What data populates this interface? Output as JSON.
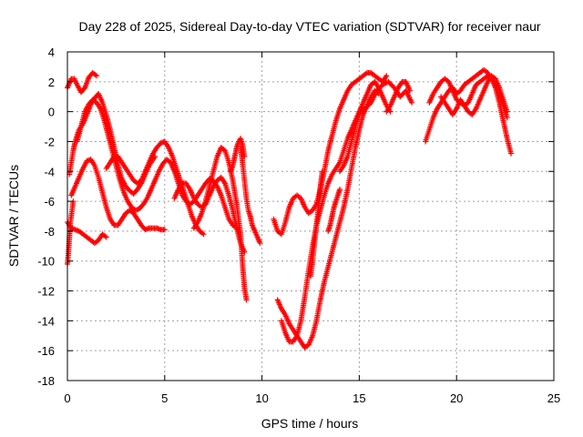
{
  "chart_data": {
    "type": "scatter",
    "title": "Day 228 of 2025, Sidereal Day-to-day VTEC variation (SDTVAR) for receiver naur",
    "xlabel": "GPS time / hours",
    "ylabel": "SDTVAR / TECUs",
    "xlim": [
      0,
      25
    ],
    "ylim": [
      -18,
      4
    ],
    "xticks": [
      "0",
      "5",
      "10",
      "15",
      "20",
      "25"
    ],
    "yticks": [
      "4",
      "2",
      "0",
      "-2",
      "-4",
      "-6",
      "-8",
      "-10",
      "-12",
      "-14",
      "-16",
      "-18"
    ],
    "grid": true,
    "marker": "+",
    "color": "#ff0000",
    "tracks": [
      {
        "x": [
          0.0,
          0.05,
          0.1,
          0.15,
          0.3
        ],
        "y": [
          -10.2,
          -9.5,
          -8.5,
          -7.5,
          -6.0
        ]
      },
      {
        "x": [
          0.0,
          0.2,
          0.35,
          0.5,
          0.7,
          0.9,
          1.1,
          1.3,
          1.5
        ],
        "y": [
          1.6,
          2.2,
          2.2,
          1.8,
          1.3,
          1.6,
          2.3,
          2.6,
          2.4
        ]
      },
      {
        "x": [
          0.1,
          0.2,
          0.3,
          0.4,
          0.5,
          0.6,
          0.8,
          1.0,
          1.2,
          1.4,
          1.6,
          1.8,
          2.0,
          2.2,
          2.4,
          2.6,
          2.8,
          3.0,
          3.2,
          3.4,
          3.6,
          3.8,
          4.0,
          4.2,
          4.5
        ],
        "y": [
          -4.2,
          -3.4,
          -2.6,
          -2.0,
          -1.6,
          -1.2,
          -0.8,
          -0.2,
          0.5,
          0.9,
          1.2,
          0.6,
          -0.2,
          -1.2,
          -2.4,
          -3.6,
          -4.5,
          -5.0,
          -5.3,
          -5.5,
          -5.2,
          -4.8,
          -4.2,
          -3.6,
          -3.0
        ]
      },
      {
        "x": [
          0.5,
          0.7,
          0.9,
          1.1,
          1.3,
          1.5,
          1.7,
          1.9,
          2.1,
          2.3,
          2.5,
          2.7,
          2.9,
          3.1,
          3.3,
          3.5,
          3.7,
          3.9,
          4.1,
          4.3,
          4.5,
          4.7,
          4.9,
          5.1,
          5.3,
          5.5,
          5.7,
          5.9,
          6.1,
          6.3,
          6.5,
          6.7,
          6.9,
          7.1,
          7.3,
          7.5,
          7.7,
          7.9,
          8.1,
          8.3,
          8.5,
          8.7
        ],
        "y": [
          -2.0,
          -1.0,
          0.0,
          0.5,
          0.8,
          0.6,
          0.2,
          -0.6,
          -1.6,
          -2.6,
          -3.6,
          -4.6,
          -5.4,
          -6.0,
          -6.4,
          -6.6,
          -6.5,
          -6.2,
          -5.8,
          -5.2,
          -4.6,
          -4.0,
          -3.5,
          -3.2,
          -3.4,
          -4.0,
          -4.8,
          -5.6,
          -6.0,
          -6.2,
          -6.0,
          -5.6,
          -5.2,
          -4.8,
          -4.5,
          -4.6,
          -5.0,
          -5.6,
          -6.4,
          -7.2,
          -7.6,
          -7.8
        ]
      },
      {
        "x": [
          0.2,
          0.4,
          0.6,
          0.8,
          1.0,
          1.2,
          1.4,
          1.6,
          1.8,
          2.0,
          2.2,
          2.4,
          2.6,
          2.8,
          3.0,
          3.2,
          3.4,
          3.6,
          3.8,
          4.0,
          4.2,
          4.4,
          4.6,
          4.8,
          5.0
        ],
        "y": [
          -5.6,
          -5.0,
          -4.4,
          -3.8,
          -3.3,
          -3.2,
          -3.6,
          -4.4,
          -5.4,
          -6.4,
          -7.2,
          -7.6,
          -7.6,
          -7.2,
          -6.8,
          -6.6,
          -6.8,
          -7.2,
          -7.6,
          -7.9,
          -7.8,
          -7.8,
          -7.8,
          -7.9,
          -7.9
        ]
      },
      {
        "x": [
          0.0,
          0.2,
          0.4,
          0.6,
          0.8,
          1.0,
          1.2,
          1.4,
          1.6,
          1.8,
          2.0
        ],
        "y": [
          -7.4,
          -7.8,
          -7.9,
          -8.0,
          -8.2,
          -8.4,
          -8.6,
          -8.8,
          -8.6,
          -8.2,
          -8.4
        ]
      },
      {
        "x": [
          2.0,
          2.2,
          2.4,
          2.6,
          2.8,
          3.0,
          3.2,
          3.4,
          3.6,
          3.8,
          4.0,
          4.2,
          4.4,
          4.6,
          4.8,
          5.0,
          5.2,
          5.4,
          5.6,
          5.8,
          6.0,
          6.2,
          6.4,
          6.6,
          6.8,
          7.0
        ],
        "y": [
          -3.8,
          -3.4,
          -3.0,
          -3.0,
          -3.4,
          -3.8,
          -4.2,
          -4.6,
          -4.8,
          -4.6,
          -4.0,
          -3.4,
          -2.8,
          -2.4,
          -2.1,
          -2.0,
          -2.4,
          -3.0,
          -3.8,
          -4.6,
          -5.4,
          -6.2,
          -7.0,
          -7.6,
          -8.0,
          -8.2
        ]
      },
      {
        "x": [
          5.5,
          5.7,
          5.9,
          6.1,
          6.3,
          6.5,
          6.7,
          6.9,
          7.1,
          7.3,
          7.5,
          7.7,
          7.9,
          8.1,
          8.3,
          8.5,
          8.7,
          8.9,
          9.1
        ],
        "y": [
          -5.8,
          -5.2,
          -4.8,
          -4.8,
          -5.2,
          -5.8,
          -6.2,
          -6.4,
          -6.2,
          -5.6,
          -5.0,
          -4.6,
          -4.4,
          -4.8,
          -5.6,
          -6.6,
          -7.8,
          -8.8,
          -9.4
        ]
      },
      {
        "x": [
          6.5,
          6.7,
          6.9,
          7.1,
          7.3,
          7.5,
          7.7,
          7.9,
          8.1,
          8.3,
          8.5,
          8.7,
          8.9,
          9.0,
          9.1,
          9.2
        ],
        "y": [
          -7.8,
          -7.4,
          -6.8,
          -6.0,
          -5.0,
          -4.0,
          -3.0,
          -2.4,
          -2.6,
          -3.4,
          -4.6,
          -6.2,
          -8.2,
          -10.2,
          -11.8,
          -12.6
        ]
      },
      {
        "x": [
          8.4,
          8.5,
          8.6,
          8.7,
          8.8,
          8.9,
          9.0,
          9.1
        ],
        "y": [
          -4.0,
          -3.6,
          -3.0,
          -2.4,
          -2.0,
          -1.8,
          -2.2,
          -3.0
        ]
      },
      {
        "x": [
          8.9,
          9.0,
          9.1,
          9.2,
          9.3,
          9.4,
          9.5,
          9.7,
          9.9
        ],
        "y": [
          -2.4,
          -3.4,
          -4.6,
          -5.8,
          -6.6,
          -7.0,
          -7.6,
          -8.2,
          -8.8
        ]
      },
      {
        "x": [
          10.6,
          10.8,
          11.0,
          11.2,
          11.4,
          11.6,
          11.8,
          12.0,
          12.2,
          12.4,
          12.6,
          12.8,
          13.0,
          13.2,
          13.4,
          13.6,
          13.8,
          14.0,
          14.2,
          14.4,
          14.6,
          14.8,
          15.0,
          15.2,
          15.4,
          15.6,
          15.8,
          16.0,
          16.2,
          16.4
        ],
        "y": [
          -7.2,
          -8.0,
          -8.2,
          -7.4,
          -6.4,
          -5.8,
          -5.6,
          -5.8,
          -6.4,
          -6.8,
          -6.6,
          -6.2,
          -5.2,
          -4.0,
          -2.6,
          -1.6,
          -0.6,
          0.2,
          0.8,
          1.4,
          1.8,
          2.0,
          2.2,
          2.4,
          2.6,
          2.6,
          2.4,
          2.2,
          2.0,
          2.4
        ]
      },
      {
        "x": [
          10.8,
          11.0,
          11.2,
          11.4,
          11.6,
          11.8,
          12.0,
          12.2,
          12.4,
          12.6,
          12.8,
          13.0,
          13.2,
          13.4,
          13.6,
          13.8,
          14.0,
          14.2,
          14.4,
          14.6,
          14.8,
          15.0,
          15.2,
          15.4,
          15.6,
          15.8,
          16.0
        ],
        "y": [
          -12.6,
          -13.2,
          -13.6,
          -14.2,
          -14.6,
          -15.0,
          -15.4,
          -15.8,
          -15.6,
          -15.0,
          -14.0,
          -12.6,
          -11.4,
          -10.4,
          -9.4,
          -8.4,
          -7.4,
          -6.4,
          -5.2,
          -3.8,
          -2.4,
          -1.2,
          -0.2,
          0.4,
          1.0,
          1.4,
          1.2
        ]
      },
      {
        "x": [
          11.0,
          11.2,
          11.4,
          11.6,
          11.8,
          12.0,
          12.2,
          12.4,
          12.6,
          12.8,
          13.0,
          13.2,
          13.4,
          13.6,
          13.8,
          14.0,
          14.2,
          14.4,
          14.6,
          14.8,
          15.0,
          15.2,
          15.4,
          15.6,
          15.8,
          16.0,
          16.2,
          16.4,
          16.6
        ],
        "y": [
          -14.0,
          -14.8,
          -15.4,
          -15.4,
          -15.0,
          -14.0,
          -12.4,
          -10.6,
          -9.0,
          -7.6,
          -6.6,
          -5.6,
          -4.8,
          -4.2,
          -3.8,
          -3.4,
          -2.6,
          -1.8,
          -1.2,
          -0.6,
          0.0,
          0.6,
          1.2,
          1.8,
          2.0,
          1.6,
          1.0,
          0.4,
          0.0
        ]
      },
      {
        "x": [
          12.5,
          12.6,
          12.7,
          12.8,
          12.9,
          13.0,
          13.1
        ],
        "y": [
          -11.0,
          -10.0,
          -8.8,
          -7.6,
          -6.4,
          -5.0,
          -4.0
        ]
      },
      {
        "x": [
          13.4,
          13.5,
          13.6,
          13.7,
          13.8,
          13.9,
          14.0
        ],
        "y": [
          -8.0,
          -7.6,
          -7.0,
          -6.4,
          -6.0,
          -5.6,
          -5.2
        ]
      },
      {
        "x": [
          14.0,
          14.2,
          14.4,
          14.6,
          14.8,
          15.0,
          15.2
        ],
        "y": [
          -4.0,
          -3.6,
          -3.0,
          -2.0,
          -1.0,
          -0.2,
          0.4
        ]
      },
      {
        "x": [
          15.0,
          15.3,
          15.6,
          15.9,
          16.2,
          16.5,
          16.8,
          17.1,
          17.4,
          17.7
        ],
        "y": [
          -0.2,
          0.2,
          0.6,
          1.4,
          1.8,
          2.0,
          1.6,
          1.0,
          1.4,
          0.6
        ]
      },
      {
        "x": [
          16.4,
          16.6,
          16.8,
          17.0,
          17.2,
          17.4,
          17.6
        ],
        "y": [
          0.0,
          0.4,
          1.0,
          1.6,
          2.0,
          2.0,
          1.4
        ]
      },
      {
        "x": [
          18.4,
          18.6,
          18.8,
          19.0,
          19.2,
          19.4,
          19.6,
          19.8,
          20.0,
          20.2,
          20.4,
          20.6,
          20.8,
          21.0,
          21.2,
          21.4,
          21.6,
          21.8,
          22.0,
          22.2,
          22.4,
          22.6,
          22.8
        ],
        "y": [
          -2.0,
          -1.2,
          -0.4,
          0.2,
          0.6,
          1.0,
          1.4,
          1.6,
          1.2,
          1.4,
          1.8,
          2.0,
          2.2,
          2.4,
          2.6,
          2.8,
          2.6,
          2.2,
          1.6,
          0.6,
          -0.6,
          -1.8,
          -2.8
        ]
      },
      {
        "x": [
          18.6,
          18.8,
          19.0,
          19.2,
          19.4,
          19.6,
          19.8,
          20.0,
          20.2,
          20.4,
          20.6,
          20.8,
          21.0,
          21.2,
          21.4,
          21.6,
          21.8,
          22.0,
          22.2,
          22.4,
          22.6
        ],
        "y": [
          0.6,
          1.2,
          1.6,
          2.0,
          2.2,
          2.0,
          1.4,
          0.8,
          0.6,
          0.4,
          0.6,
          1.2,
          1.8,
          2.0,
          2.2,
          2.4,
          2.2,
          1.8,
          1.2,
          0.4,
          -0.4
        ]
      },
      {
        "x": [
          19.2,
          19.4,
          19.6,
          19.8,
          20.0,
          20.2,
          20.4,
          20.6,
          20.8,
          21.0,
          21.2,
          21.4,
          21.6,
          21.8,
          22.0,
          22.2,
          22.4,
          22.6
        ],
        "y": [
          1.0,
          0.6,
          0.2,
          -0.2,
          0.2,
          0.8,
          0.4,
          0.0,
          -0.2,
          0.2,
          0.8,
          1.4,
          2.0,
          2.4,
          2.2,
          1.6,
          0.8,
          0.0
        ]
      }
    ]
  }
}
